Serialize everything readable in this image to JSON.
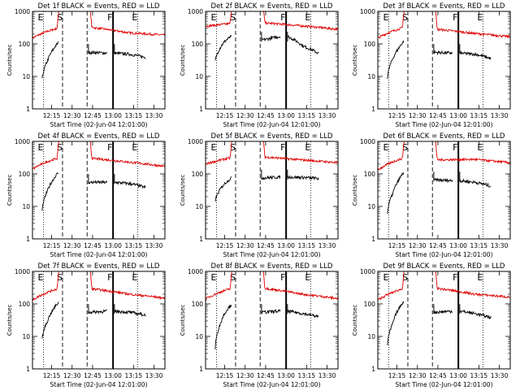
{
  "chart_data": {
    "type": "line",
    "layout": "3x3 grid of log-scale time series panels",
    "common": {
      "xlabel": "Start Time (02-Jun-04 12:01:00)",
      "ylabel": "Counts/sec",
      "x_ticks_minutes": [
        14,
        29,
        44,
        59,
        74,
        89
      ],
      "x_tick_labels": [
        "12:15",
        "12:30",
        "12:45",
        "13:00",
        "13:15",
        "13:30"
      ],
      "xlim_minutes": [
        0,
        97
      ],
      "ylim": [
        1,
        1000
      ],
      "yscale": "log",
      "y_tick_labels": [
        "1",
        "10",
        "100",
        "1000"
      ],
      "series_names": [
        "Events (black)",
        "LLD (red)"
      ],
      "colors": {
        "events": "#000000",
        "lld": "#e00000"
      },
      "marker_labels": [
        "E",
        "S",
        "F",
        "E"
      ],
      "vline_minutes": {
        "dotted": [
          8,
          77
        ],
        "dashed": [
          22,
          40
        ],
        "solid": 59
      }
    },
    "panels": [
      {
        "title": "Det 1f BLACK = Events, RED = LLD",
        "lld": {
          "before": [
            150,
            300
          ],
          "after": [
            320,
            220,
            185
          ]
        },
        "events": {
          "before": [
            8,
            30,
            65,
            110
          ],
          "after": [
            55,
            52,
            48,
            38
          ]
        }
      },
      {
        "title": "Det 2f BLACK = Events, RED = LLD",
        "lld": {
          "before": [
            350,
            420
          ],
          "after": [
            440,
            360,
            280
          ]
        },
        "events": {
          "before": [
            30,
            80,
            130,
            170
          ],
          "after": [
            130,
            170,
            85,
            50
          ]
        }
      },
      {
        "title": "Det 3f BLACK = Events, RED = LLD",
        "lld": {
          "before": [
            150,
            310
          ],
          "after": [
            280,
            210,
            165
          ]
        },
        "events": {
          "before": [
            9,
            35,
            70,
            120
          ],
          "after": [
            55,
            52,
            48,
            35
          ]
        }
      },
      {
        "title": "Det 4f BLACK = Events, RED = LLD",
        "lld": {
          "before": [
            140,
            300
          ],
          "after": [
            300,
            230,
            170
          ]
        },
        "events": {
          "before": [
            7,
            30,
            65,
            110
          ],
          "after": [
            55,
            55,
            50,
            38
          ]
        }
      },
      {
        "title": "Det 5f BLACK = Events, RED = LLD",
        "lld": {
          "before": [
            200,
            310
          ],
          "after": [
            330,
            270,
            220
          ]
        },
        "events": {
          "before": [
            15,
            35,
            55,
            75
          ],
          "after": [
            75,
            80,
            78,
            72
          ]
        }
      },
      {
        "title": "Det 6f BLACK = Events, RED = LLD",
        "lld": {
          "before": [
            130,
            300
          ],
          "after": [
            270,
            280,
            220
          ]
        },
        "events": {
          "before": [
            6,
            25,
            60,
            110
          ],
          "after": [
            65,
            62,
            55,
            42
          ]
        }
      },
      {
        "title": "Det 7f BLACK = Events, RED = LLD",
        "lld": {
          "before": [
            130,
            290
          ],
          "after": [
            290,
            200,
            150
          ]
        },
        "events": {
          "before": [
            8,
            30,
            65,
            110
          ],
          "after": [
            55,
            60,
            55,
            45
          ]
        }
      },
      {
        "title": "Det 8f BLACK = Events, RED = LLD",
        "lld": {
          "before": [
            140,
            290
          ],
          "after": [
            300,
            200,
            145
          ]
        },
        "events": {
          "before": [
            4,
            25,
            60,
            95
          ],
          "after": [
            55,
            60,
            50,
            40
          ]
        }
      },
      {
        "title": "Det 9f BLACK = Events, RED = LLD",
        "lld": {
          "before": [
            130,
            290
          ],
          "after": [
            300,
            200,
            160
          ]
        },
        "events": {
          "before": [
            5,
            25,
            65,
            120
          ],
          "after": [
            55,
            60,
            50,
            38
          ]
        }
      }
    ]
  }
}
